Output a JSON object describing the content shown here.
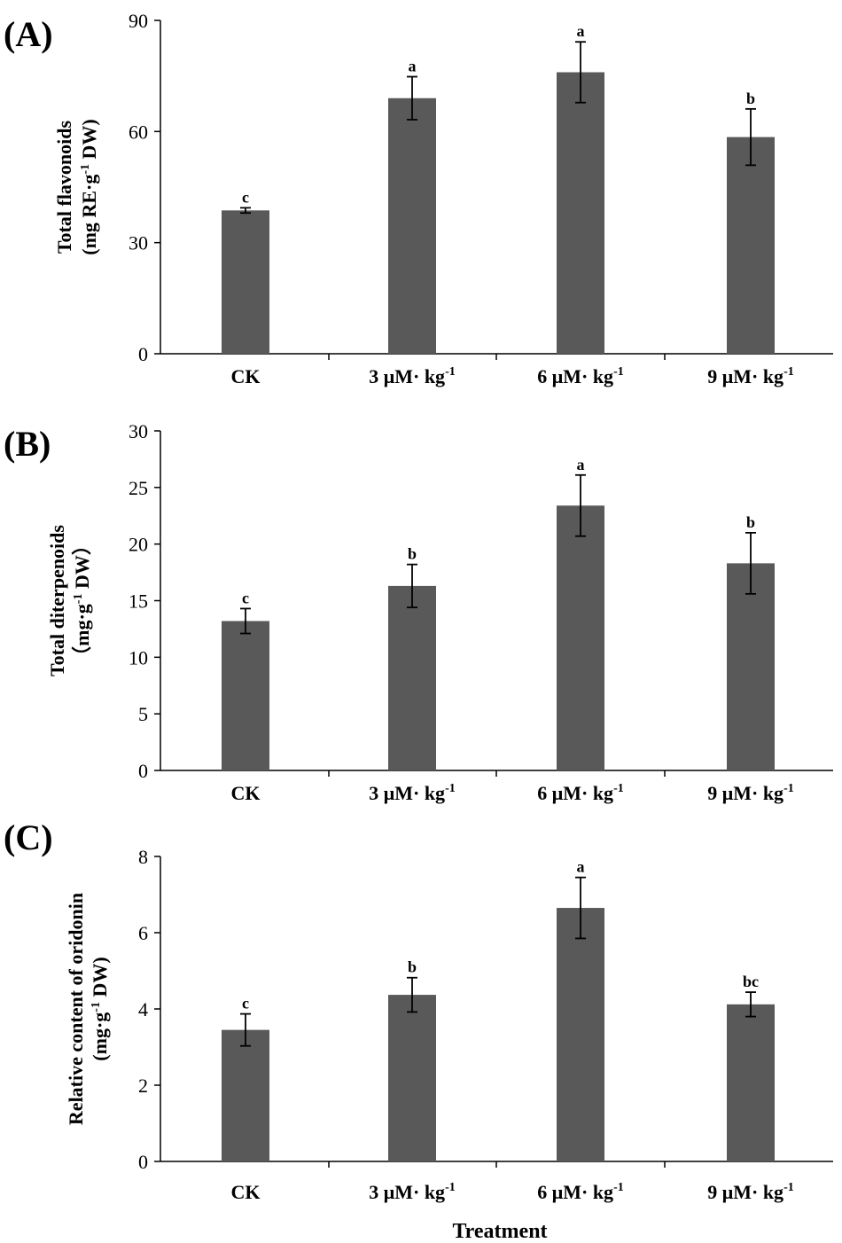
{
  "figure": {
    "x_axis_title": "Treatment",
    "colors": {
      "bar": "#595959",
      "axis": "#000000"
    }
  },
  "chart_data": [
    {
      "type": "bar",
      "panel_label": "(A)",
      "categories": [
        "CK",
        "3 μM· kg",
        "6 μM· kg",
        "9 μM· kg"
      ],
      "category_superscripts": [
        "",
        "-1",
        "-1",
        "-1"
      ],
      "values": [
        38.7,
        69.0,
        76.0,
        58.5
      ],
      "errors": [
        0.7,
        5.8,
        8.2,
        7.6
      ],
      "significance": [
        "c",
        "a",
        "a",
        "b"
      ],
      "ylabel_line1": "Total flavonoids",
      "ylabel_line2_pre": "(mg RE·g",
      "ylabel_line2_sup": "-1",
      "ylabel_line2_post": " DW)",
      "ylim": [
        0,
        90
      ],
      "yticks": [
        0,
        30,
        60,
        90
      ]
    },
    {
      "type": "bar",
      "panel_label": "(B)",
      "categories": [
        "CK",
        "3 μM· kg",
        "6 μM· kg",
        "9 μM· kg"
      ],
      "category_superscripts": [
        "",
        "-1",
        "-1",
        "-1"
      ],
      "values": [
        13.2,
        16.3,
        23.4,
        18.3
      ],
      "errors": [
        1.1,
        1.9,
        2.7,
        2.7
      ],
      "significance": [
        "c",
        "b",
        "a",
        "b"
      ],
      "ylabel_line1": "Total diterpenoids",
      "ylabel_line2_pre": "（mg·g",
      "ylabel_line2_sup": "-1",
      "ylabel_line2_post": " DW）",
      "ylim": [
        0,
        30
      ],
      "yticks": [
        0,
        5,
        10,
        15,
        20,
        25,
        30
      ]
    },
    {
      "type": "bar",
      "panel_label": "(C)",
      "categories": [
        "CK",
        "3 μM· kg",
        "6 μM· kg",
        "9 μM· kg"
      ],
      "category_superscripts": [
        "",
        "-1",
        "-1",
        "-1"
      ],
      "values": [
        3.45,
        4.37,
        6.65,
        4.12
      ],
      "errors": [
        0.42,
        0.45,
        0.8,
        0.32
      ],
      "significance": [
        "c",
        "b",
        "a",
        "bc"
      ],
      "ylabel_line1": "Relative content of oridonin",
      "ylabel_line2_pre": "(mg·g",
      "ylabel_line2_sup": "-1",
      "ylabel_line2_post": " DW)",
      "ylim": [
        0,
        8
      ],
      "yticks": [
        0,
        2,
        4,
        6,
        8
      ]
    }
  ]
}
